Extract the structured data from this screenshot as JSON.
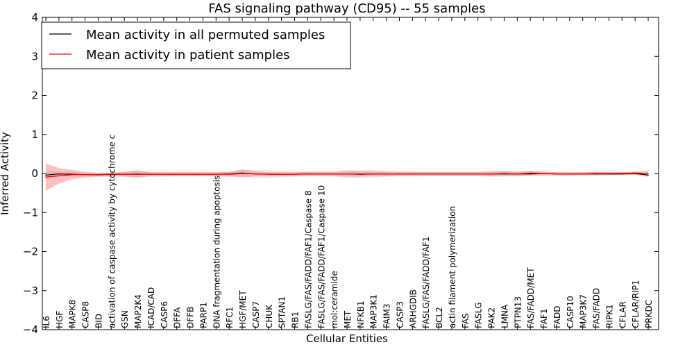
{
  "chart_data": {
    "type": "line",
    "title": "FAS signaling pathway (CD95) -- 55 samples",
    "xlabel": "Cellular Entities",
    "ylabel": "Inferred Activity",
    "ylim": [
      -4,
      4
    ],
    "yticks": [
      -4,
      -3,
      -2,
      -1,
      0,
      1,
      2,
      3,
      4
    ],
    "ytick_labels": [
      "−4",
      "−3",
      "−2",
      "−1",
      "0",
      "1",
      "2",
      "3",
      "4"
    ],
    "legend": {
      "placement": "top-left",
      "entries": [
        {
          "label": "Mean activity in all permuted samples",
          "color": "#000000"
        },
        {
          "label": "Mean activity in patient samples",
          "color": "#ff0000"
        }
      ]
    },
    "categories": [
      "IL6",
      "HGF",
      "MAPK8",
      "CASP8",
      "BID",
      "activation of caspase activity by cytochrome c",
      "GSN",
      "MAP2K4",
      "ICAD/CAD",
      "CASP6",
      "DFFA",
      "DFFB",
      "PARP1",
      "DNA fragmentation during apoptosis",
      "RFC1",
      "HGF/MET",
      "CASP7",
      "CHUK",
      "SPTAN1",
      "RB1",
      "FASLG/FAS/FADD/FAF1/Caspase 8",
      "FASLG/FAS/FADD/FAF1/Caspase 10",
      "mol:ceramide",
      "MET",
      "NFKB1",
      "MAP3K1",
      "FAIM3",
      "CASP3",
      "ARHGDIB",
      "FASLG/FAS/FADD/FAF1",
      "BCL2",
      "actin filament polymerization",
      "FAS",
      "FASLG",
      "PAK2",
      "LMNA",
      "PTPN13",
      "FAS/FADD/MET",
      "FAF1",
      "FADD",
      "CASP10",
      "MAP3K7",
      "FAS/FADD",
      "RIPK1",
      "CFLAR",
      "CFLAR/RIP1",
      "PRKDC"
    ],
    "series": [
      {
        "name": "Mean activity in all permuted samples",
        "color": "#000000",
        "values": [
          -0.04,
          -0.01,
          -0.02,
          -0.03,
          -0.03,
          -0.02,
          -0.02,
          -0.02,
          -0.02,
          -0.02,
          -0.02,
          -0.02,
          -0.02,
          -0.02,
          -0.01,
          0.01,
          -0.01,
          -0.02,
          -0.02,
          -0.02,
          -0.01,
          -0.01,
          -0.01,
          -0.01,
          -0.02,
          -0.01,
          -0.01,
          -0.01,
          -0.01,
          -0.01,
          -0.01,
          -0.01,
          -0.01,
          -0.01,
          -0.01,
          -0.01,
          -0.01,
          -0.01,
          0.0,
          -0.01,
          -0.01,
          -0.01,
          -0.01,
          -0.01,
          -0.01,
          0.0,
          -0.04
        ],
        "band": [
          0.1,
          0.06,
          0.06,
          0.05,
          0.05,
          0.05,
          0.06,
          0.09,
          0.06,
          0.06,
          0.05,
          0.05,
          0.05,
          0.05,
          0.06,
          0.09,
          0.1,
          0.1,
          0.07,
          0.06,
          0.06,
          0.06,
          0.07,
          0.1,
          0.1,
          0.1,
          0.07,
          0.06,
          0.06,
          0.05,
          0.05,
          0.05,
          0.05,
          0.05,
          0.07,
          0.07,
          0.06,
          0.06,
          0.05,
          0.04,
          0.04,
          0.04,
          0.05,
          0.04,
          0.04,
          0.04,
          0.06
        ]
      },
      {
        "name": "Mean activity in patient samples",
        "color": "#ff0000",
        "values": [
          -0.09,
          -0.06,
          -0.03,
          -0.03,
          -0.03,
          -0.03,
          -0.02,
          -0.01,
          -0.02,
          -0.02,
          -0.02,
          -0.02,
          -0.02,
          -0.02,
          -0.02,
          0.0,
          -0.01,
          -0.02,
          -0.02,
          -0.02,
          -0.01,
          -0.01,
          -0.01,
          -0.01,
          -0.01,
          -0.01,
          -0.01,
          -0.01,
          -0.01,
          -0.01,
          -0.01,
          -0.01,
          -0.01,
          -0.01,
          -0.01,
          0.0,
          -0.01,
          0.01,
          0.0,
          -0.01,
          -0.01,
          -0.01,
          0.0,
          0.0,
          0.0,
          0.01,
          0.0
        ],
        "band": [
          0.35,
          0.2,
          0.12,
          0.07,
          0.05,
          0.05,
          0.06,
          0.09,
          0.05,
          0.05,
          0.05,
          0.05,
          0.05,
          0.05,
          0.06,
          0.1,
          0.06,
          0.05,
          0.05,
          0.05,
          0.05,
          0.05,
          0.05,
          0.07,
          0.07,
          0.06,
          0.06,
          0.05,
          0.05,
          0.05,
          0.05,
          0.05,
          0.05,
          0.05,
          0.06,
          0.06,
          0.05,
          0.06,
          0.05,
          0.04,
          0.04,
          0.04,
          0.04,
          0.04,
          0.04,
          0.04,
          0.06
        ]
      }
    ]
  }
}
